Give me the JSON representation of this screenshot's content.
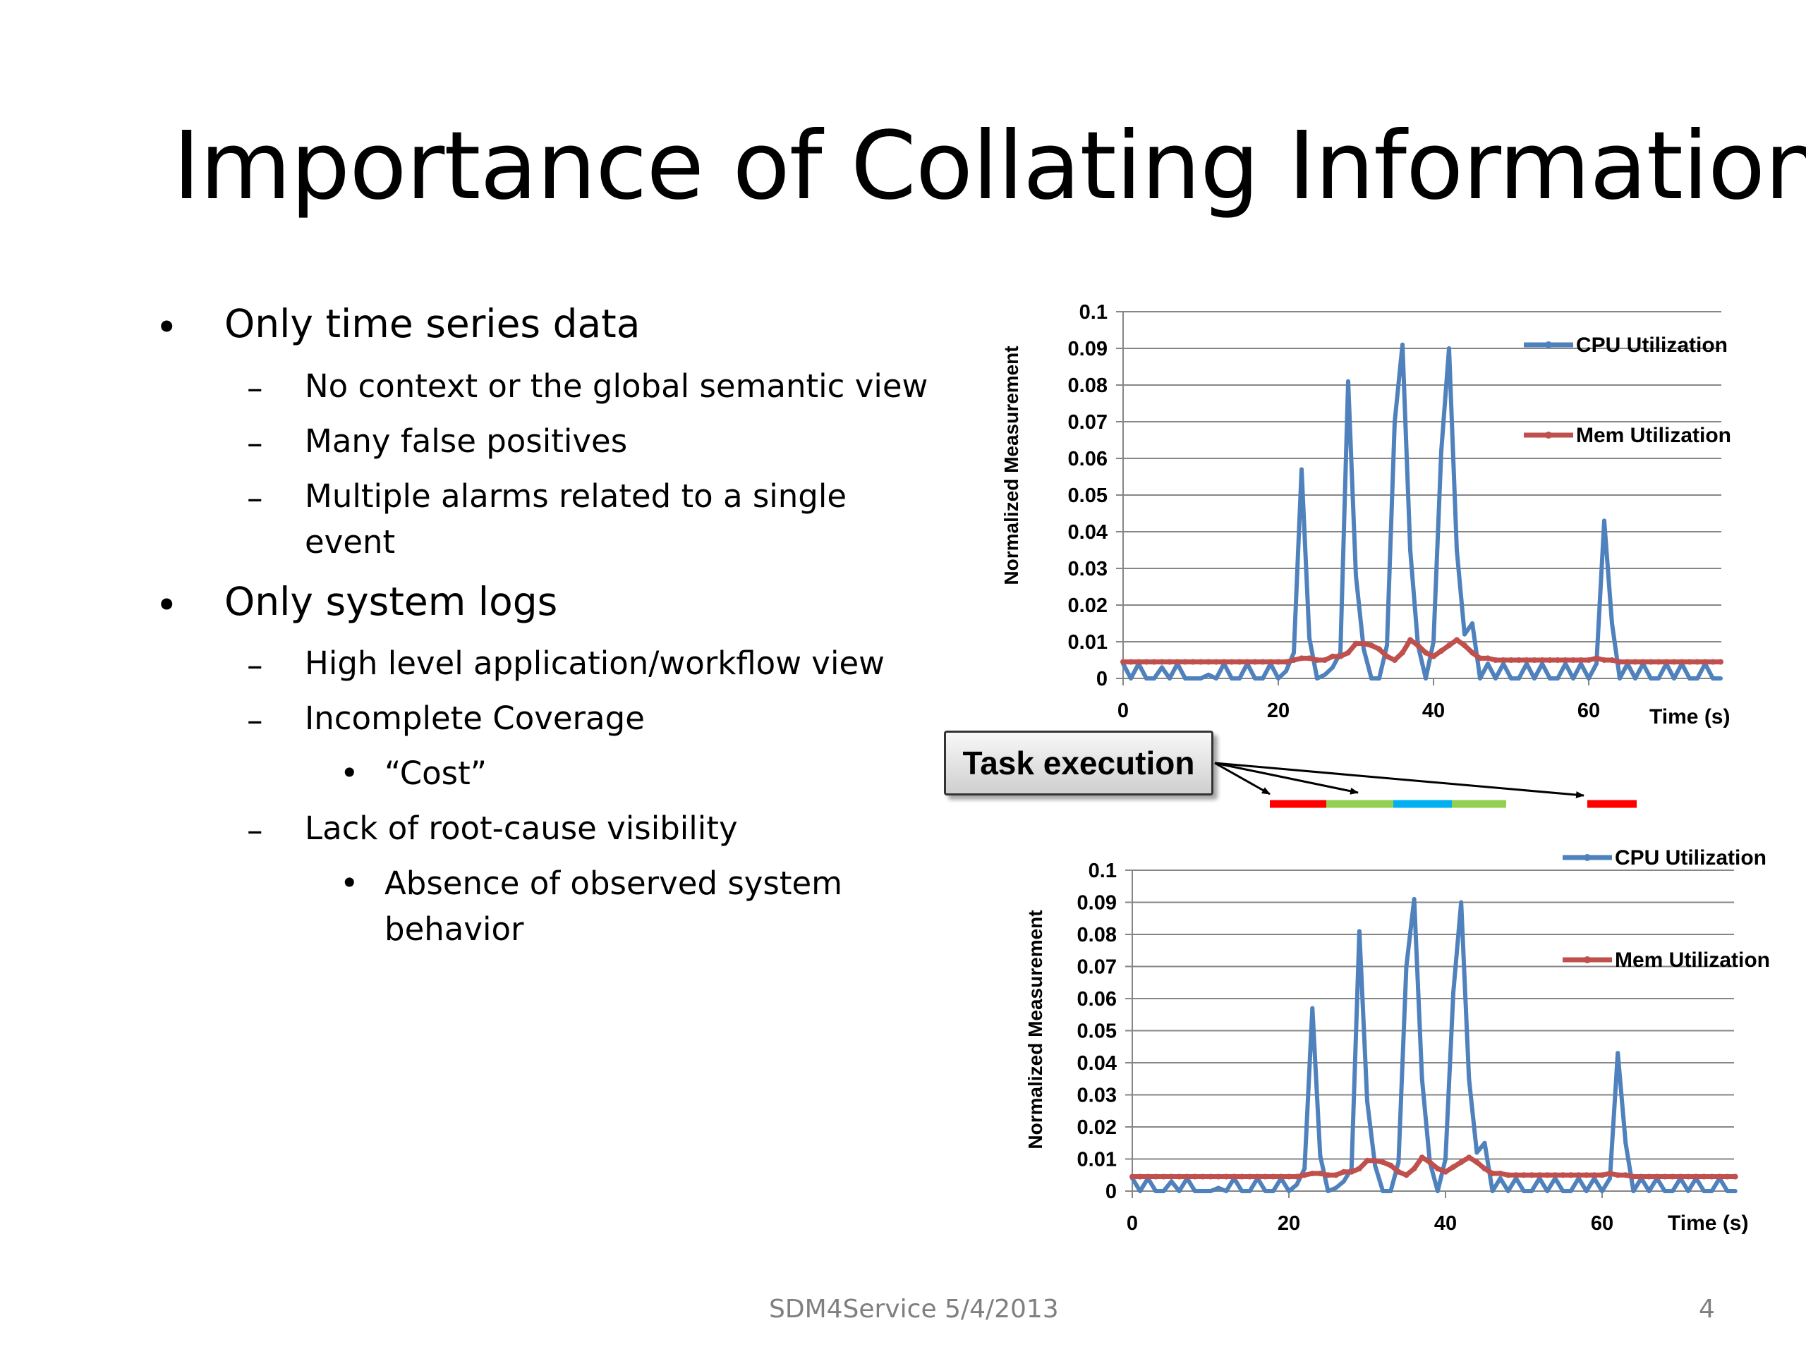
{
  "slide": {
    "title": "Importance of Collating Information",
    "bullets": [
      {
        "text": "Only time series data",
        "children": [
          {
            "text": "No context or the global semantic view"
          },
          {
            "text": "Many false positives"
          },
          {
            "text": "Multiple alarms related to a single",
            "continuation": "event"
          }
        ]
      },
      {
        "text": "Only system logs",
        "children": [
          {
            "text": "High level application/workflow view"
          },
          {
            "text": "Incomplete Coverage",
            "children": [
              {
                "text": "“Cost”"
              }
            ]
          },
          {
            "text": "Lack of root-cause visibility",
            "children": [
              {
                "text": "Absence of observed system",
                "continuation": "behavior"
              }
            ]
          }
        ]
      }
    ],
    "bullet_marker": "•",
    "dash_marker": "–",
    "footer": {
      "text": "SDM4Service 5/4/2013",
      "page_number": "4"
    }
  },
  "task_execution": {
    "label": "Task execution",
    "segments": [
      {
        "color": "#ff0000"
      },
      {
        "color": "#92d050"
      },
      {
        "color": "#00b0f0"
      },
      {
        "color": "#92d050"
      },
      {
        "color": "#ff0000"
      }
    ]
  },
  "colors": {
    "cpu": "#4f81bd",
    "mem": "#c0504d",
    "grid": "#868686"
  },
  "chart_data": [
    {
      "type": "line",
      "ylabel": "Normalized Measurement",
      "xlabel": "Time (s)",
      "xlim": [
        0,
        77
      ],
      "ylim": [
        0,
        0.1
      ],
      "yticks": [
        "0",
        "0.01",
        "0.02",
        "0.03",
        "0.04",
        "0.05",
        "0.06",
        "0.07",
        "0.08",
        "0.09",
        "0.1"
      ],
      "xticks": [
        "0",
        "20",
        "40",
        "60"
      ],
      "legend_position": "right",
      "series": [
        {
          "name": "CPU Utilization",
          "color": "#4f81bd"
        },
        {
          "name": "Mem Utilization",
          "color": "#c0504d"
        }
      ]
    },
    {
      "type": "line",
      "ylabel": "Normalized Measurement",
      "xlabel": "Time (s)",
      "xlim": [
        0,
        77
      ],
      "ylim": [
        0,
        0.1
      ],
      "yticks": [
        "0",
        "0.01",
        "0.02",
        "0.03",
        "0.04",
        "0.05",
        "0.06",
        "0.07",
        "0.08",
        "0.09",
        "0.1"
      ],
      "xticks": [
        "0",
        "20",
        "40",
        "60"
      ],
      "legend_position": "top-right",
      "series": [
        {
          "name": "CPU Utilization",
          "color": "#4f81bd"
        },
        {
          "name": "Mem Utilization",
          "color": "#c0504d"
        }
      ]
    }
  ],
  "series_values": {
    "x": [
      0,
      1,
      2,
      3,
      4,
      5,
      6,
      7,
      8,
      9,
      10,
      11,
      12,
      13,
      14,
      15,
      16,
      17,
      18,
      19,
      20,
      21,
      22,
      23,
      24,
      25,
      26,
      27,
      28,
      29,
      30,
      31,
      32,
      33,
      34,
      35,
      36,
      37,
      38,
      39,
      40,
      41,
      42,
      43,
      44,
      45,
      46,
      47,
      48,
      49,
      50,
      51,
      52,
      53,
      54,
      55,
      56,
      57,
      58,
      59,
      60,
      61,
      62,
      63,
      64,
      65,
      66,
      67,
      68,
      69,
      70,
      71,
      72,
      73,
      74,
      75,
      76,
      77
    ],
    "cpu": [
      0.004,
      0,
      0.004,
      0,
      0,
      0.003,
      0,
      0.004,
      0,
      0,
      0,
      0.001,
      0,
      0.004,
      0,
      0,
      0.004,
      0,
      0,
      0.004,
      0,
      0.002,
      0.007,
      0.057,
      0.011,
      0,
      0.001,
      0.003,
      0.007,
      0.081,
      0.028,
      0.008,
      0,
      0,
      0.009,
      0.07,
      0.091,
      0.035,
      0.009,
      0,
      0.01,
      0.062,
      0.09,
      0.035,
      0.012,
      0.015,
      0,
      0.004,
      0,
      0.004,
      0,
      0,
      0.004,
      0,
      0.004,
      0,
      0,
      0.004,
      0,
      0.004,
      0,
      0.004,
      0.043,
      0.015,
      0,
      0.004,
      0,
      0.004,
      0,
      0,
      0.004,
      0,
      0.004,
      0,
      0,
      0.004,
      0,
      0
    ],
    "mem": [
      0.0045,
      0.0045,
      0.0045,
      0.0045,
      0.0045,
      0.0045,
      0.0045,
      0.0045,
      0.0045,
      0.0045,
      0.0045,
      0.0045,
      0.0045,
      0.0045,
      0.0045,
      0.0045,
      0.0045,
      0.0045,
      0.0045,
      0.0045,
      0.0045,
      0.0045,
      0.005,
      0.0055,
      0.0055,
      0.005,
      0.005,
      0.006,
      0.006,
      0.007,
      0.0095,
      0.0095,
      0.009,
      0.008,
      0.006,
      0.005,
      0.007,
      0.0105,
      0.009,
      0.007,
      0.006,
      0.0075,
      0.009,
      0.0105,
      0.009,
      0.007,
      0.0055,
      0.0055,
      0.005,
      0.005,
      0.005,
      0.005,
      0.005,
      0.005,
      0.005,
      0.005,
      0.005,
      0.005,
      0.005,
      0.005,
      0.005,
      0.0055,
      0.005,
      0.005,
      0.0045,
      0.0045,
      0.0045,
      0.0045,
      0.0045,
      0.0045,
      0.0045,
      0.0045,
      0.0045,
      0.0045,
      0.0045,
      0.0045,
      0.0045,
      0.0045
    ]
  }
}
